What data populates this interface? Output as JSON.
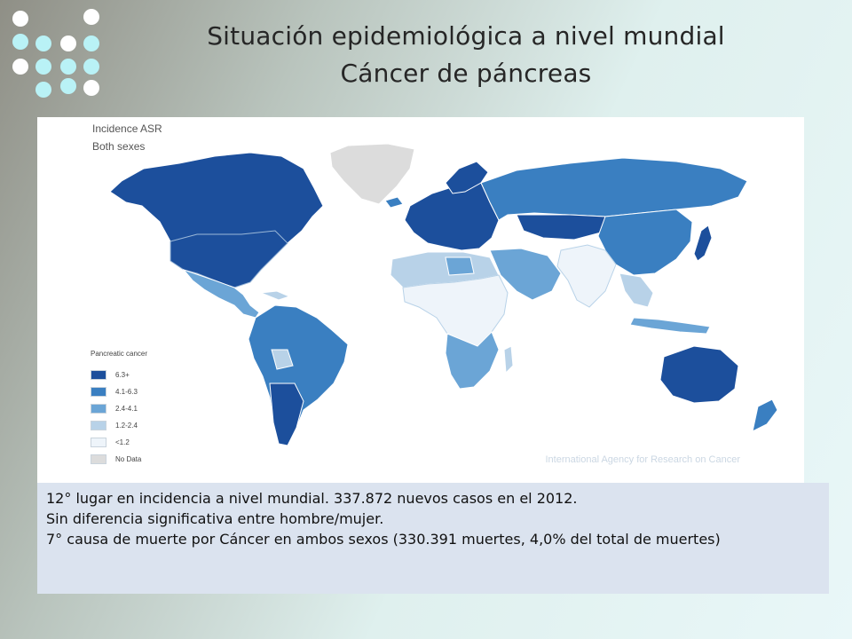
{
  "slide": {
    "title_line1": "Situación epidemiológica a nivel  mundial",
    "title_line2": "Cáncer de páncreas"
  },
  "decoration": {
    "dot_colors": {
      "white": "#ffffff",
      "cyan": "#b9f2f6"
    }
  },
  "map": {
    "heading_line1": "Incidence ASR",
    "heading_line2": "Both sexes",
    "legend_title": "Pancreatic cancer",
    "legend": [
      {
        "label": "6.3+",
        "color": "#1c4f9c"
      },
      {
        "label": "4.1-6.3",
        "color": "#3a7fc1"
      },
      {
        "label": "2.4-4.1",
        "color": "#6ba5d6"
      },
      {
        "label": "1.2-2.4",
        "color": "#b8d2e8"
      },
      {
        "label": "<1.2",
        "color": "#eef4fa"
      },
      {
        "label": "No Data",
        "color": "#dcdcdc"
      }
    ],
    "credit": "International Agency for Research on Cancer"
  },
  "notes": {
    "line1": "12° lugar en incidencia a nivel mundial. 337.872 nuevos casos en el 2012.",
    "line2": "Sin diferencia significativa entre hombre/mujer.",
    "line3": "7° causa de muerte por Cáncer en ambos sexos (330.391 muertes, 4,0% del total de muertes)"
  }
}
